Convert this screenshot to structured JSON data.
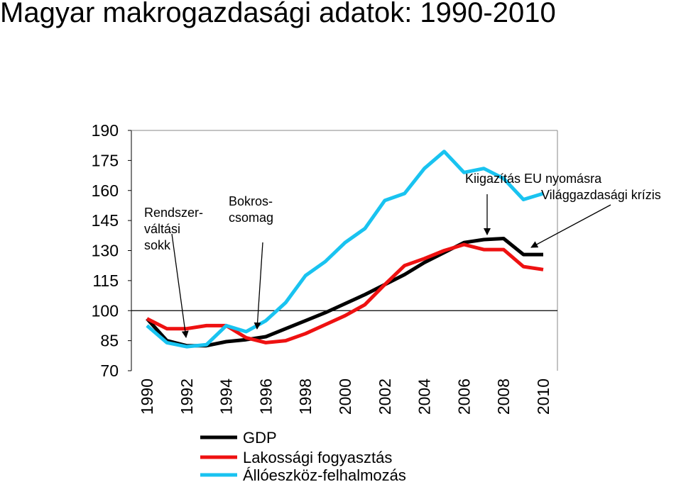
{
  "chart_data": {
    "type": "line",
    "title": "Magyar makrogazdasági adatok: 1990-2010",
    "xlabel": "",
    "ylabel": "",
    "x": [
      1990,
      1991,
      1992,
      1993,
      1994,
      1995,
      1996,
      1997,
      1998,
      1999,
      2000,
      2001,
      2002,
      2003,
      2004,
      2005,
      2006,
      2007,
      2008,
      2009,
      2010
    ],
    "x_tick_labels": [
      "1990",
      "1992",
      "1994",
      "1996",
      "1998",
      "2000",
      "2002",
      "2004",
      "2006",
      "2008",
      "2010"
    ],
    "ylim": [
      70,
      190
    ],
    "y_ticks": [
      70,
      85,
      100,
      115,
      130,
      145,
      160,
      175,
      190
    ],
    "reference_line": 100,
    "grid": false,
    "legend_position": "bottom",
    "series": [
      {
        "name": "GDP",
        "color": "#000000",
        "values": [
          96,
          85,
          82.5,
          82.5,
          84.5,
          85.5,
          87,
          91,
          95,
          99,
          103.5,
          108,
          113,
          118,
          124,
          129,
          134,
          135.5,
          136,
          128,
          128
        ]
      },
      {
        "name": "Lakossági fogyasztás",
        "color": "#ee1111",
        "values": [
          96,
          91,
          91,
          92.5,
          92.5,
          86.5,
          84,
          85,
          88.5,
          93,
          97.5,
          103,
          113,
          122.5,
          126,
          130,
          133,
          130.5,
          130.5,
          122,
          120.5
        ]
      },
      {
        "name": "Állóeszköz-felhalmozás",
        "color": "#19c3f0",
        "values": [
          92.5,
          84,
          82,
          83,
          92.5,
          89.5,
          95,
          104,
          117.5,
          124.5,
          134,
          141,
          155,
          158.5,
          171,
          179.5,
          169,
          171,
          166,
          155.5,
          158.5
        ]
      }
    ],
    "annotations": [
      {
        "lines": [
          "Rendszer-",
          "váltási",
          "sokk"
        ]
      },
      {
        "lines": [
          "Bokros-",
          "csomag"
        ]
      },
      {
        "lines": [
          "Kiigazítás EU nyomásra"
        ]
      },
      {
        "lines": [
          "Világgazdasági krízis"
        ]
      }
    ]
  }
}
